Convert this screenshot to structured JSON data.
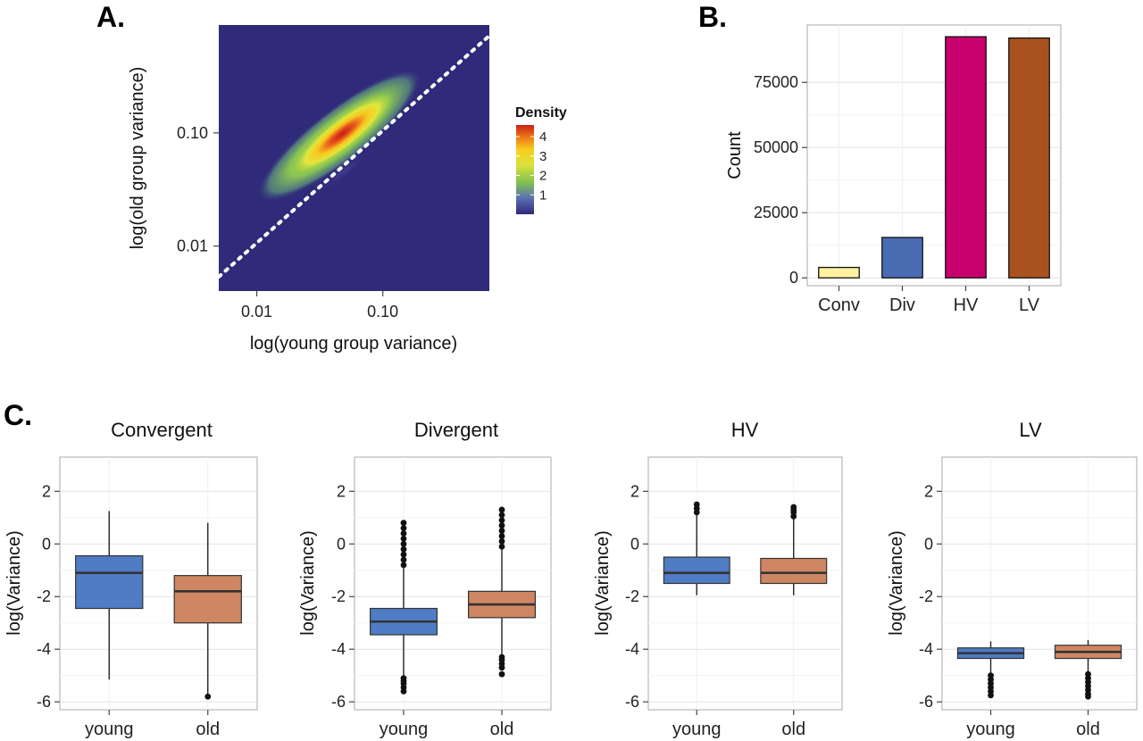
{
  "panels": {
    "a": {
      "label": "A."
    },
    "b": {
      "label": "B."
    },
    "c": {
      "label": "C."
    }
  },
  "colors": {
    "conv": "#fdf2a0",
    "div": "#4a6cb3",
    "hv": "#c8006e",
    "lv": "#a9521f",
    "young_box": "#4f7cc4",
    "old_box": "#cf8662",
    "density_bg": "#2f2a7a"
  },
  "chart_data": [
    {
      "id": "A",
      "type": "heatmap",
      "title": "",
      "xlabel": "log(young group variance)",
      "ylabel": "log(old group variance)",
      "x_scale": "log10",
      "y_scale": "log10",
      "xlim": [
        0.005,
        0.7
      ],
      "ylim": [
        0.004,
        0.9
      ],
      "x_ticks": [
        "0.01",
        "0.10"
      ],
      "y_ticks": [
        "0.01",
        "0.10"
      ],
      "legend_title": "Density",
      "legend_ticks": [
        "4",
        "3",
        "2",
        "1"
      ],
      "density_peak": {
        "x": 0.055,
        "y": 0.11,
        "max_density": 4.6
      },
      "reference_line": "y = x (dotted)"
    },
    {
      "id": "B",
      "type": "bar",
      "title": "",
      "xlabel": "",
      "ylabel": "Count",
      "categories": [
        "Conv",
        "Div",
        "HV",
        "LV"
      ],
      "values": [
        4000,
        15500,
        92500,
        92000
      ],
      "y_ticks": [
        "0",
        "25000",
        "50000",
        "75000"
      ],
      "ylim": [
        -3000,
        97000
      ]
    },
    {
      "id": "C",
      "type": "box",
      "ylabel": "log(Variance)",
      "categories": [
        "young",
        "old"
      ],
      "y_ticks": [
        "2",
        "0",
        "-2",
        "-4",
        "-6"
      ],
      "ylim": [
        -6.3,
        3.3
      ],
      "facets": [
        {
          "title": "Convergent",
          "boxes": [
            {
              "group": "young",
              "q1": -2.45,
              "median": -1.1,
              "q3": -0.45,
              "whisker_low": -5.15,
              "whisker_high": 1.25,
              "outliers_low": [],
              "outliers_high": []
            },
            {
              "group": "old",
              "q1": -3.0,
              "median": -1.8,
              "q3": -1.2,
              "whisker_low": -5.7,
              "whisker_high": 0.8,
              "outliers_low": [
                -5.8
              ],
              "outliers_high": []
            }
          ]
        },
        {
          "title": "Divergent",
          "boxes": [
            {
              "group": "young",
              "q1": -3.45,
              "median": -2.95,
              "q3": -2.45,
              "whisker_low": -5.0,
              "whisker_high": -0.9,
              "outliers_low": [
                -5.1,
                -5.2,
                -5.3,
                -5.45,
                -5.6
              ],
              "outliers_high": [
                -0.8,
                -0.6,
                -0.4,
                -0.2,
                0.0,
                0.2,
                0.4,
                0.6,
                0.8
              ]
            },
            {
              "group": "old",
              "q1": -2.8,
              "median": -2.3,
              "q3": -1.8,
              "whisker_low": -4.2,
              "whisker_high": -0.2,
              "outliers_low": [
                -4.3,
                -4.4,
                -4.55,
                -4.7,
                -4.95
              ],
              "outliers_high": [
                -0.1,
                0.1,
                0.3,
                0.5,
                0.7,
                0.9,
                1.1,
                1.3
              ]
            }
          ]
        },
        {
          "title": "HV",
          "boxes": [
            {
              "group": "young",
              "q1": -1.5,
              "median": -1.1,
              "q3": -0.5,
              "whisker_low": -1.95,
              "whisker_high": 1.1,
              "outliers_low": [],
              "outliers_high": [
                1.2,
                1.35,
                1.5
              ]
            },
            {
              "group": "old",
              "q1": -1.5,
              "median": -1.1,
              "q3": -0.55,
              "whisker_low": -1.95,
              "whisker_high": 0.95,
              "outliers_low": [],
              "outliers_high": [
                1.05,
                1.2,
                1.3,
                1.4
              ]
            }
          ]
        },
        {
          "title": "LV",
          "boxes": [
            {
              "group": "young",
              "q1": -4.35,
              "median": -4.15,
              "q3": -3.95,
              "whisker_low": -4.9,
              "whisker_high": -3.7,
              "outliers_low": [
                -5.0,
                -5.15,
                -5.3,
                -5.45,
                -5.6,
                -5.75
              ],
              "outliers_high": []
            },
            {
              "group": "old",
              "q1": -4.35,
              "median": -4.1,
              "q3": -3.85,
              "whisker_low": -4.85,
              "whisker_high": -3.65,
              "outliers_low": [
                -4.95,
                -5.1,
                -5.25,
                -5.4,
                -5.55,
                -5.7,
                -5.8
              ],
              "outliers_high": []
            }
          ]
        }
      ]
    }
  ]
}
